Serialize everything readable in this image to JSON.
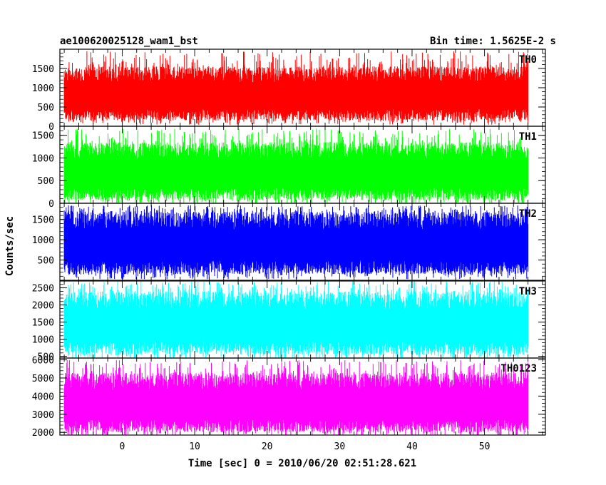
{
  "header": {
    "title": "ae100620025128_wam1_bst",
    "bin_time": "Bin time: 1.5625E-2 s"
  },
  "chart_data": {
    "type": "line",
    "xlabel": "Time [sec] 0 = 2010/06/20 02:51:28.621",
    "ylabel": "Counts/sec",
    "xlim": [
      -8.6,
      58.4
    ],
    "x_ticks": [
      0,
      10,
      20,
      30,
      40,
      50
    ],
    "x_range_data": [
      -8,
      56
    ],
    "panels": [
      {
        "name": "TH0",
        "color": "#ff0000",
        "ylim": [
          0,
          2000
        ],
        "y_ticks": [
          0,
          500,
          1000,
          1500
        ],
        "low": 150,
        "high": 1550,
        "spike_max": 1950,
        "base": 820
      },
      {
        "name": "TH1",
        "color": "#00ff00",
        "ylim": [
          0,
          1700
        ],
        "y_ticks": [
          0,
          500,
          1000,
          1500
        ],
        "low": 70,
        "high": 1350,
        "spike_max": 1650,
        "base": 650
      },
      {
        "name": "TH2",
        "color": "#0000ff",
        "ylim": [
          0,
          1900
        ],
        "y_ticks": [
          500,
          1000,
          1500
        ],
        "low": 150,
        "high": 1700,
        "spike_max": 1850,
        "base": 900
      },
      {
        "name": "TH3",
        "color": "#00ffff",
        "ylim": [
          450,
          2700
        ],
        "y_ticks": [
          500,
          1000,
          1500,
          2000,
          2500
        ],
        "low": 550,
        "high": 2400,
        "spike_max": 2700,
        "base": 1450
      },
      {
        "name": "TH0123",
        "color": "#ff00ff",
        "ylim": [
          1850,
          6100
        ],
        "y_ticks": [
          2000,
          3000,
          4000,
          5000,
          6000
        ],
        "low": 2000,
        "high": 5300,
        "spike_max": 6000,
        "base": 3500
      }
    ]
  }
}
